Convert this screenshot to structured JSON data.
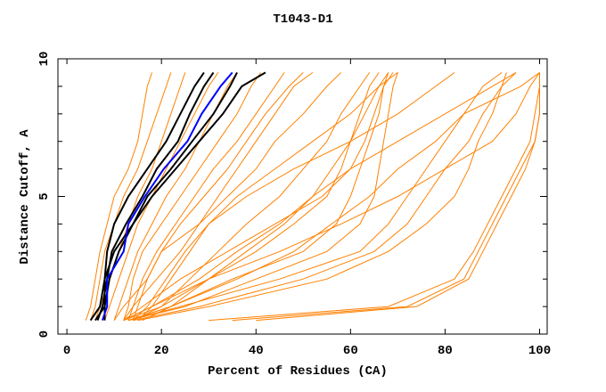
{
  "chart_data": {
    "type": "line",
    "title": "T1043-D1",
    "xlabel": "Percent of Residues (CA)",
    "ylabel": "Distance Cutoff, A",
    "xlim": [
      -1.9,
      101.6
    ],
    "ylim": [
      0,
      10
    ],
    "xticks": [
      0,
      20,
      40,
      60,
      80,
      100
    ],
    "yticks": [
      0,
      5,
      10
    ],
    "grid": false,
    "colors": {
      "models": "#ff8000",
      "highlight": "#0000ff",
      "reference": "#000000"
    },
    "cutoffs": [
      0.5,
      1,
      2,
      3,
      4,
      5,
      6,
      7,
      8,
      9,
      9.5
    ],
    "series_orange": [
      [
        4,
        5,
        6,
        7,
        8.5,
        10,
        13,
        15,
        16,
        17,
        18
      ],
      [
        5,
        6,
        7,
        8,
        10,
        12,
        15,
        17,
        19,
        21,
        22
      ],
      [
        6,
        7,
        9,
        11,
        13,
        15,
        18,
        20,
        22,
        24,
        25
      ],
      [
        8,
        9,
        11,
        13,
        15,
        18,
        21,
        24,
        27,
        30,
        32
      ],
      [
        10,
        11,
        13,
        15,
        18,
        21,
        25,
        28,
        31,
        34,
        36
      ],
      [
        12,
        13,
        14,
        16,
        20,
        24,
        28,
        32,
        36,
        39,
        41
      ],
      [
        13,
        14,
        16,
        19,
        23,
        27,
        31,
        36,
        40,
        44,
        46
      ],
      [
        14,
        15,
        17,
        20,
        24,
        29,
        34,
        38,
        42,
        47,
        50
      ],
      [
        12,
        14,
        19,
        24,
        28,
        32,
        36,
        40,
        44,
        48,
        52
      ],
      [
        12,
        20,
        30,
        40,
        48,
        55,
        58,
        60,
        62,
        64,
        66
      ],
      [
        12,
        18,
        28,
        36,
        45,
        52,
        56,
        60,
        63,
        66,
        68
      ],
      [
        13,
        22,
        35,
        50,
        57,
        60,
        62,
        64,
        66,
        67,
        68
      ],
      [
        13,
        25,
        40,
        55,
        62,
        65,
        66,
        67,
        68,
        69,
        70
      ],
      [
        14,
        20,
        26,
        32,
        38,
        45,
        50,
        55,
        58,
        62,
        64
      ],
      [
        12,
        16,
        24,
        34,
        44,
        54,
        60,
        63,
        65,
        67,
        69
      ],
      [
        13,
        24,
        45,
        62,
        68,
        72,
        76,
        80,
        84,
        88,
        92
      ],
      [
        14,
        28,
        50,
        65,
        72,
        76,
        80,
        85,
        88,
        92,
        95
      ],
      [
        15,
        30,
        55,
        68,
        76,
        82,
        85,
        87,
        90,
        92,
        93
      ],
      [
        13,
        22,
        36,
        48,
        56,
        64,
        70,
        78,
        84,
        96,
        100
      ],
      [
        12,
        18,
        30,
        45,
        58,
        70,
        80,
        90,
        95,
        98,
        100
      ],
      [
        30,
        68,
        82,
        86,
        89,
        92,
        95,
        98,
        99,
        100,
        100
      ],
      [
        35,
        72,
        84,
        87,
        90,
        93,
        96,
        99,
        100,
        100,
        100
      ],
      [
        40,
        74,
        85,
        88,
        91,
        94,
        97,
        99,
        100,
        100,
        100
      ],
      [
        15,
        18,
        22,
        26,
        30,
        36,
        44,
        52,
        60,
        66,
        70
      ],
      [
        10,
        12,
        17,
        20,
        28,
        34,
        40,
        44,
        50,
        55,
        58
      ],
      [
        16,
        22,
        30,
        38,
        46,
        52,
        60,
        70,
        80,
        90,
        95
      ],
      [
        14,
        17,
        21,
        25,
        30,
        38,
        48,
        60,
        70,
        78,
        82
      ]
    ],
    "series_black": [
      [
        5,
        7,
        8,
        8.5,
        10,
        13,
        17,
        21,
        24,
        27,
        29
      ],
      [
        6.5,
        7.5,
        8.5,
        9.5,
        12.5,
        16,
        19,
        23.5,
        26,
        29,
        31
      ],
      [
        8,
        8,
        8,
        10,
        14,
        17,
        22,
        26.5,
        31,
        34.5,
        36
      ],
      [
        6,
        8,
        9,
        11,
        14,
        18,
        23,
        28,
        33,
        37,
        42
      ]
    ],
    "series_blue": [
      7.5,
      8.5,
      8.5,
      12,
      13,
      16.5,
      20.5,
      25.5,
      28.5,
      32.5,
      35
    ]
  }
}
